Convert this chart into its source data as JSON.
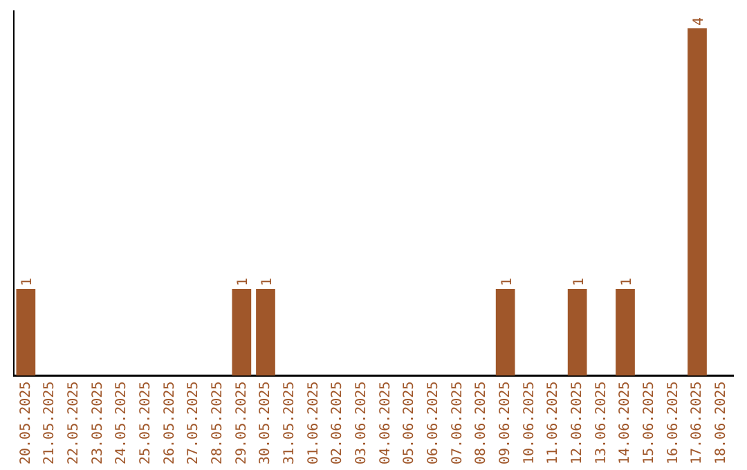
{
  "chart_data": {
    "type": "bar",
    "categories": [
      "20.05.2025",
      "21.05.2025",
      "22.05.2025",
      "23.05.2025",
      "24.05.2025",
      "25.05.2025",
      "26.05.2025",
      "27.05.2025",
      "28.05.2025",
      "29.05.2025",
      "30.05.2025",
      "31.05.2025",
      "01.06.2025",
      "02.06.2025",
      "03.06.2025",
      "04.06.2025",
      "05.06.2025",
      "06.06.2025",
      "07.06.2025",
      "08.06.2025",
      "09.06.2025",
      "10.06.2025",
      "11.06.2025",
      "12.06.2025",
      "13.06.2025",
      "14.06.2025",
      "15.06.2025",
      "16.06.2025",
      "17.06.2025",
      "18.06.2025"
    ],
    "values": [
      1,
      0,
      0,
      0,
      0,
      0,
      0,
      0,
      0,
      1,
      1,
      0,
      0,
      0,
      0,
      0,
      0,
      0,
      0,
      0,
      1,
      0,
      0,
      1,
      0,
      1,
      0,
      0,
      4,
      0
    ],
    "value_labels": [
      "1",
      null,
      null,
      null,
      null,
      null,
      null,
      null,
      null,
      "1",
      "1",
      null,
      null,
      null,
      null,
      null,
      null,
      null,
      null,
      null,
      "1",
      null,
      null,
      "1",
      null,
      "1",
      null,
      null,
      "4",
      null
    ],
    "color": "#a0572a",
    "ylim": [
      0,
      4.2
    ],
    "tick_labels": "x",
    "grid": false,
    "legend": false
  }
}
